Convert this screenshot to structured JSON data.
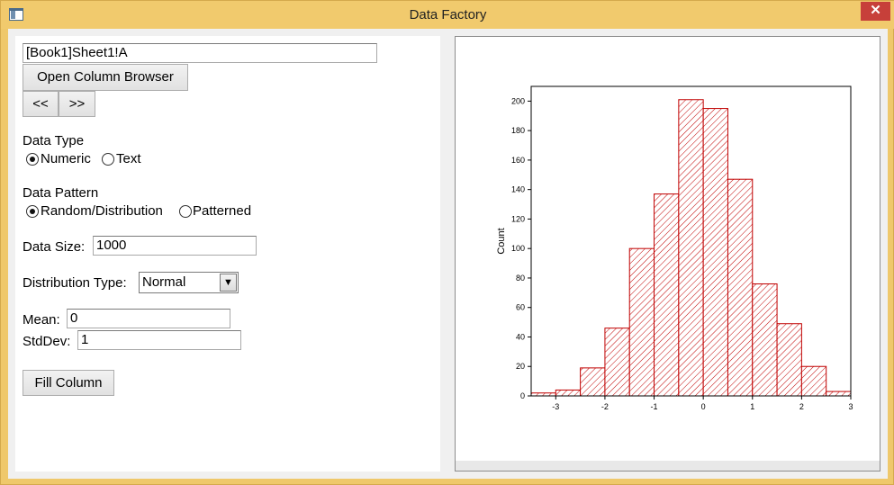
{
  "window": {
    "title": "Data Factory",
    "close_glyph": "✕"
  },
  "form": {
    "column_value": "[Book1]Sheet1!A",
    "open_browser_label": "Open Column Browser",
    "prev_label": "<<",
    "next_label": ">>",
    "data_type_label": "Data Type",
    "data_type_options": [
      "Numeric",
      "Text"
    ],
    "data_type_selected": "Numeric",
    "data_pattern_label": "Data Pattern",
    "data_pattern_options": [
      "Random/Distribution",
      "Patterned"
    ],
    "data_pattern_selected": "Random/Distribution",
    "data_size_label": "Data Size:",
    "data_size_value": "1000",
    "distribution_label": "Distribution Type:",
    "distribution_value": "Normal",
    "mean_label": "Mean:",
    "mean_value": "0",
    "stddev_label": "StdDev:",
    "stddev_value": "1",
    "fill_label": "Fill Column"
  },
  "icons": {
    "app": "app-window-icon",
    "close": "close-icon",
    "dropdown": "chevron-down-icon"
  },
  "chart_data": {
    "type": "bar",
    "subtype": "histogram",
    "title": "",
    "xlabel": "",
    "ylabel": "Count",
    "xlim": [
      -3.5,
      3
    ],
    "ylim": [
      0,
      210
    ],
    "xticks": [
      -3,
      -2,
      -1,
      0,
      1,
      2,
      3
    ],
    "yticks": [
      0,
      20,
      40,
      60,
      80,
      100,
      120,
      140,
      160,
      180,
      200
    ],
    "bin_width": 0.5,
    "bins": [
      {
        "start": -3.5,
        "end": -3.0,
        "count": 2
      },
      {
        "start": -3.0,
        "end": -2.5,
        "count": 4
      },
      {
        "start": -2.5,
        "end": -2.0,
        "count": 19
      },
      {
        "start": -2.0,
        "end": -1.5,
        "count": 46
      },
      {
        "start": -1.5,
        "end": -1.0,
        "count": 100
      },
      {
        "start": -1.0,
        "end": -0.5,
        "count": 137
      },
      {
        "start": -0.5,
        "end": 0.0,
        "count": 201
      },
      {
        "start": 0.0,
        "end": 0.5,
        "count": 195
      },
      {
        "start": 0.5,
        "end": 1.0,
        "count": 147
      },
      {
        "start": 1.0,
        "end": 1.5,
        "count": 76
      },
      {
        "start": 1.5,
        "end": 2.0,
        "count": 49
      },
      {
        "start": 2.0,
        "end": 2.5,
        "count": 20
      },
      {
        "start": 2.5,
        "end": 3.0,
        "count": 3
      }
    ],
    "bar_color": "#c00000",
    "fill_pattern": "diagonal-hatch",
    "grid": false,
    "legend": "none"
  }
}
